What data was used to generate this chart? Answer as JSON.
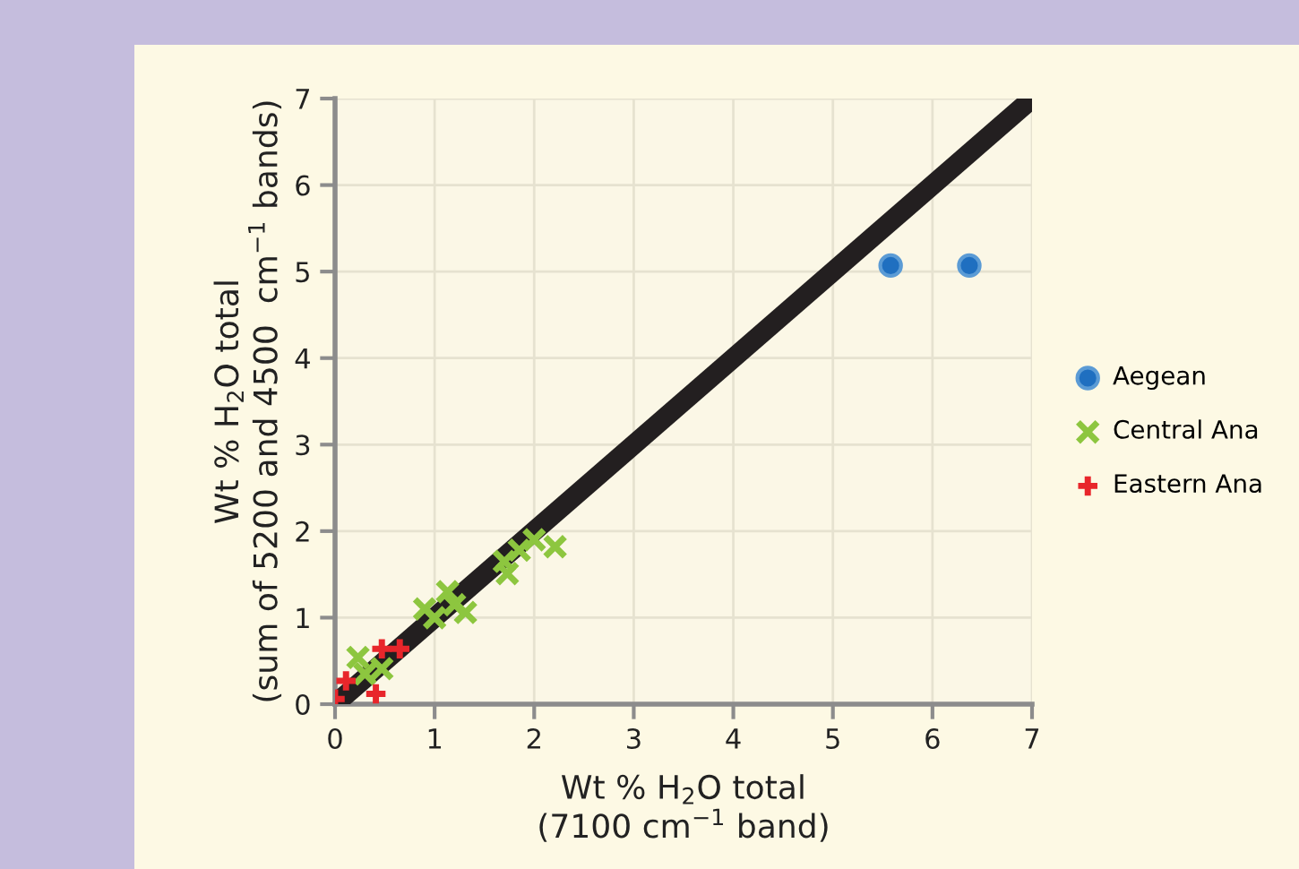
{
  "chart_data": {
    "type": "scatter",
    "xlabel": "Wt % H$_{2}$O total\n(7100 cm$^{−1}$ band)",
    "ylabel": "Wt % H$_{2}$O total\n(sum of 5200 and 4500  cm$^{−1}$ bands)",
    "xlim": [
      0,
      7
    ],
    "ylim": [
      0,
      7
    ],
    "xticks": [
      0,
      1,
      2,
      3,
      4,
      5,
      6,
      7
    ],
    "yticks": [
      0,
      1,
      2,
      3,
      4,
      5,
      6,
      7
    ],
    "grid": true,
    "legend": "right",
    "series": [
      {
        "name": "Aegean",
        "color": "#1f6fc0",
        "marker": "circle",
        "x": [
          5.58,
          6.37
        ],
        "values": [
          5.07,
          5.07
        ]
      },
      {
        "name": "Central Ana",
        "color": "#8dc63f",
        "marker": "cross",
        "x": [
          0.23,
          0.3,
          0.47,
          0.9,
          1.0,
          1.13,
          1.2,
          1.31,
          1.7,
          1.73,
          1.85,
          2.0,
          2.21
        ],
        "values": [
          0.54,
          0.35,
          0.41,
          1.1,
          1.0,
          1.3,
          1.15,
          1.06,
          1.65,
          1.51,
          1.78,
          1.9,
          1.82
        ]
      },
      {
        "name": "Eastern Ana",
        "color": "#e8262b",
        "marker": "plus",
        "x": [
          0.0,
          0.11,
          0.41,
          0.47,
          0.65
        ],
        "values": [
          0.06,
          0.27,
          0.12,
          0.64,
          0.64
        ]
      },
      {
        "type": "line",
        "color": "#231f20",
        "marker": "none",
        "x": [
          0,
          7
        ],
        "values": [
          0,
          7
        ]
      }
    ]
  }
}
